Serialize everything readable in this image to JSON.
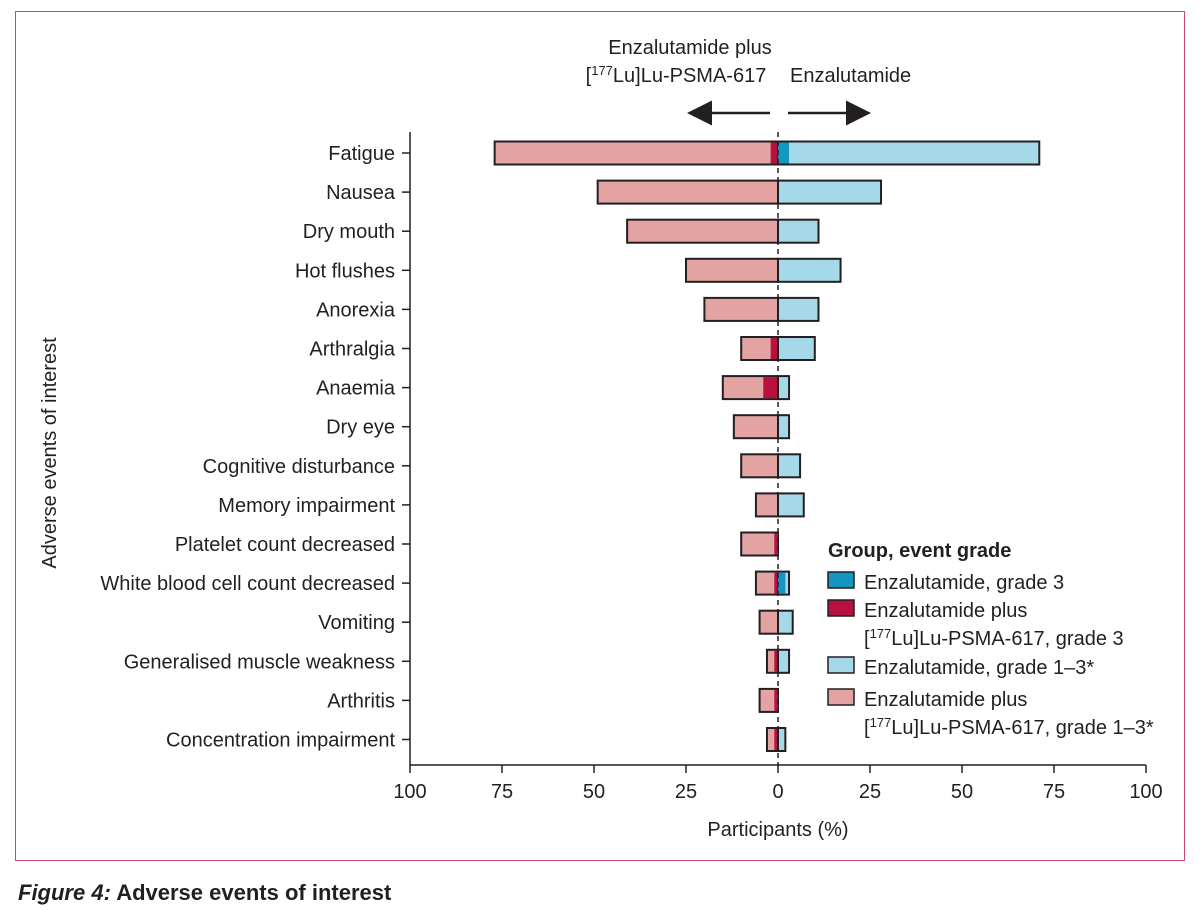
{
  "chart_data": {
    "type": "bar",
    "orientation": "horizontal",
    "diverging": true,
    "left_group_label_line1": "Enzalutamide plus",
    "left_group_label_line2": "[177Lu]Lu-PSMA-617",
    "right_group_label": "Enzalutamide",
    "ylabel": "Adverse events of interest",
    "xlabel": "Participants (%)",
    "xlim": [
      -100,
      100
    ],
    "xticks": [
      {
        "value": -100,
        "label": "100"
      },
      {
        "value": -75,
        "label": "75"
      },
      {
        "value": -50,
        "label": "50"
      },
      {
        "value": -25,
        "label": "25"
      },
      {
        "value": 0,
        "label": "0"
      },
      {
        "value": 25,
        "label": "25"
      },
      {
        "value": 50,
        "label": "50"
      },
      {
        "value": 75,
        "label": "75"
      },
      {
        "value": 100,
        "label": "100"
      }
    ],
    "categories": [
      "Fatigue",
      "Nausea",
      "Dry mouth",
      "Hot flushes",
      "Anorexia",
      "Arthralgia",
      "Anaemia",
      "Dry eye",
      "Cognitive disturbance",
      "Memory impairment",
      "Platelet count decreased",
      "White blood cell count decreased",
      "Vomiting",
      "Generalised muscle weakness",
      "Arthritis",
      "Concentration impairment"
    ],
    "series": [
      {
        "name": "Enzalutamide plus [177Lu]Lu-PSMA-617, grade 1–3*",
        "side": "left",
        "values": [
          77,
          49,
          41,
          25,
          20,
          10,
          15,
          12,
          10,
          6,
          10,
          6,
          5,
          3,
          5,
          3
        ]
      },
      {
        "name": "Enzalutamide plus [177Lu]Lu-PSMA-617, grade 3",
        "side": "left",
        "values": [
          2,
          0,
          0,
          0,
          0,
          2,
          4,
          0,
          0,
          0,
          1,
          1,
          0,
          1,
          1,
          1
        ]
      },
      {
        "name": "Enzalutamide, grade 1–3*",
        "side": "right",
        "values": [
          71,
          28,
          11,
          17,
          11,
          10,
          3,
          3,
          6,
          7,
          0,
          3,
          4,
          3,
          0,
          2
        ]
      },
      {
        "name": "Enzalutamide, grade 3",
        "side": "right",
        "values": [
          3,
          0,
          0,
          0,
          0,
          0,
          0,
          0,
          0,
          0,
          0,
          2,
          0,
          0,
          0,
          0
        ]
      }
    ],
    "legend": {
      "title": "Group, event grade",
      "placement": "bottom-right",
      "items": [
        {
          "label_lines": [
            "Enzalutamide, grade 3"
          ],
          "color": "#1596c1"
        },
        {
          "label_lines": [
            "Enzalutamide plus",
            "[177Lu]Lu-PSMA-617, grade 3"
          ],
          "color": "#b7123f"
        },
        {
          "label_lines": [
            "Enzalutamide, grade 1–3*"
          ],
          "color": "#a5d9ea"
        },
        {
          "label_lines": [
            "Enzalutamide plus",
            "[177Lu]Lu-PSMA-617, grade 1–3*"
          ],
          "color": "#e3a3a3"
        }
      ]
    },
    "colors": {
      "left_all": "#e3a3a3",
      "left_g3": "#b7123f",
      "right_all": "#a5d9ea",
      "right_g3": "#1596c1",
      "edge": "#231f20",
      "frame": "#c9476b"
    }
  },
  "caption": {
    "label": "Figure 4:",
    "text": " Adverse events of interest"
  }
}
